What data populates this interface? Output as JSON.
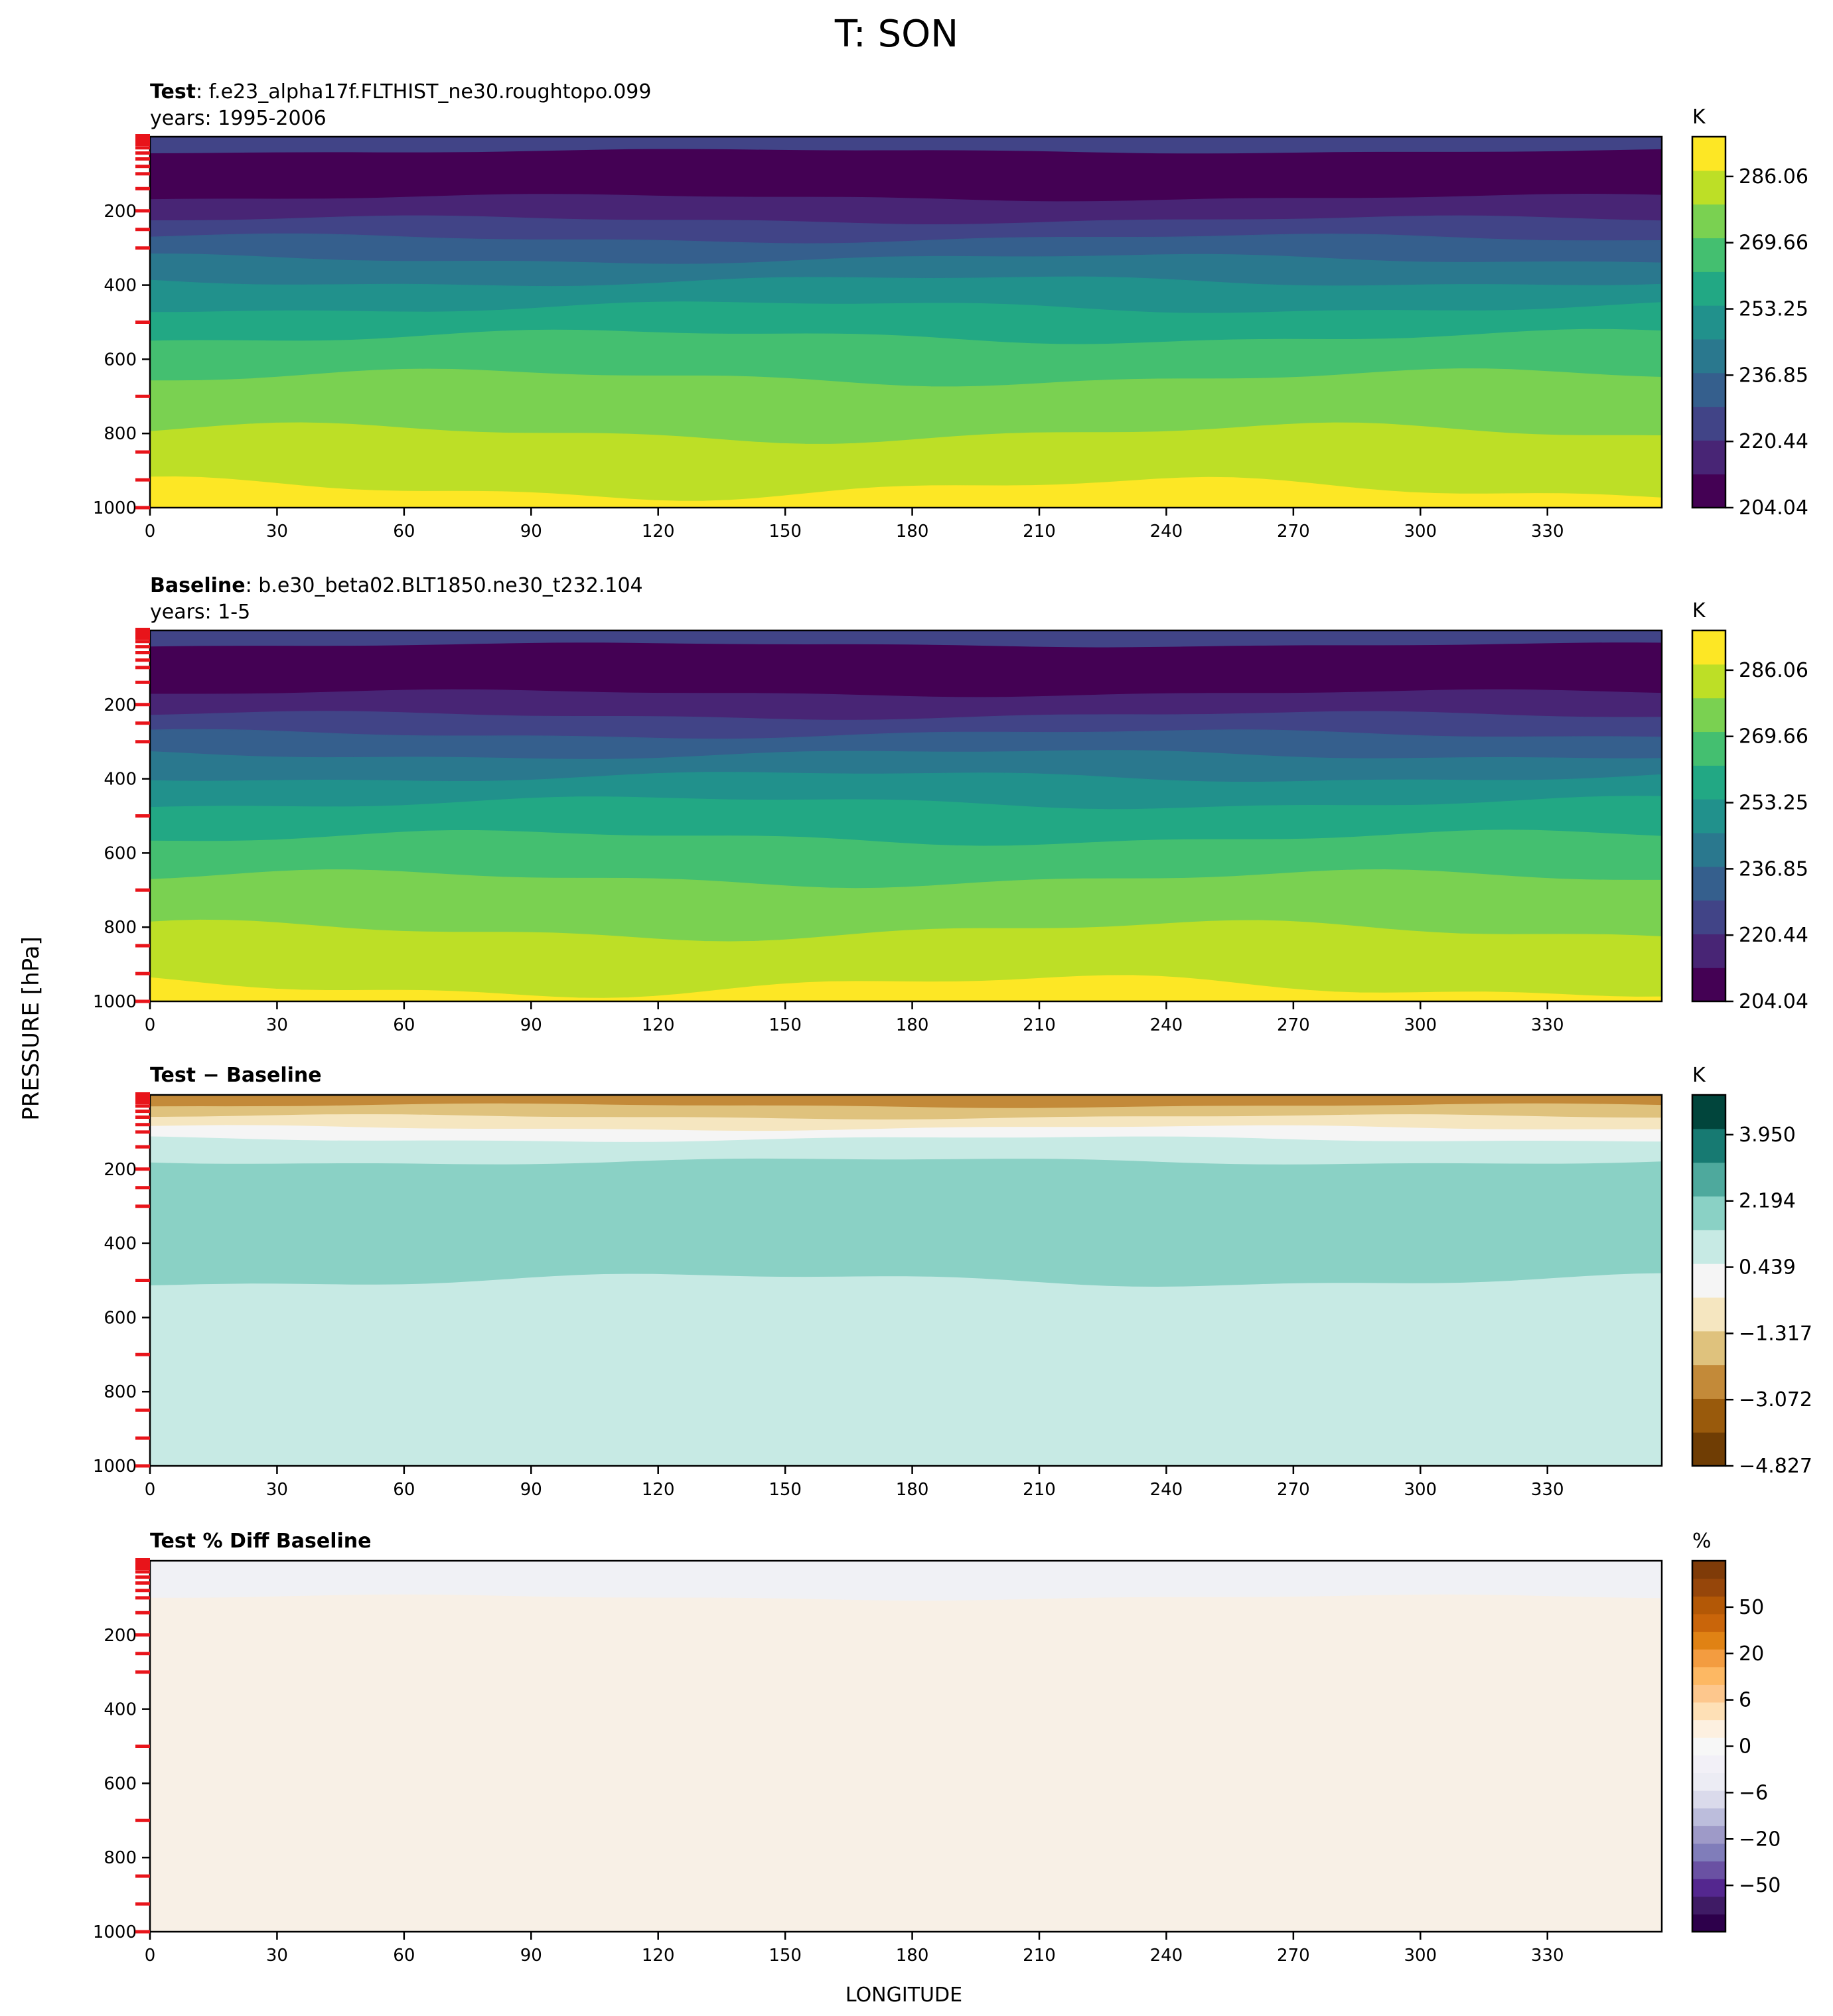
{
  "figure": {
    "title": "T: SON",
    "ylabel": "PRESSURE [hPa]",
    "xlabel": "LONGITUDE"
  },
  "chart_data": [
    {
      "type": "heatmap",
      "panel_id": "test",
      "label_bold": "Test",
      "label_rest": ": f.e23_alpha17f.FLTHIST_ne30.roughtopo.099",
      "years": "years: 1995-2006",
      "colorbar": {
        "unit": "K",
        "ticks": [
          "286.06",
          "269.66",
          "253.25",
          "236.85",
          "220.44",
          "204.04"
        ],
        "colors": [
          "#440154",
          "#482575",
          "#414487",
          "#355f8d",
          "#2a788e",
          "#21918c",
          "#22a884",
          "#44bf70",
          "#7ad151",
          "#bddf26",
          "#fde725"
        ]
      },
      "xlim": [
        0,
        357
      ],
      "x_ticks": [
        0,
        30,
        60,
        90,
        120,
        150,
        180,
        210,
        240,
        270,
        300,
        330
      ],
      "ylim": [
        1000,
        0
      ],
      "y_ticks": [
        200,
        400,
        600,
        800,
        1000
      ],
      "model_levels_hPa": [
        4,
        7,
        12,
        20,
        30,
        44,
        60,
        80,
        100,
        140,
        200,
        250,
        300,
        500,
        700,
        850,
        925,
        1000
      ],
      "bands": [
        {
          "level": 1,
          "top": 0,
          "bottom": 40,
          "color": "#414487"
        },
        {
          "level": 0,
          "top": 40,
          "bottom": 165,
          "color": "#440154"
        },
        {
          "level": 1,
          "top": 165,
          "bottom": 225,
          "color": "#482575"
        },
        {
          "level": 2,
          "top": 225,
          "bottom": 275,
          "color": "#414487"
        },
        {
          "level": 3,
          "top": 275,
          "bottom": 330,
          "color": "#355f8d"
        },
        {
          "level": 4,
          "top": 330,
          "bottom": 390,
          "color": "#2a788e"
        },
        {
          "level": 5,
          "top": 390,
          "bottom": 460,
          "color": "#21918c"
        },
        {
          "level": 6,
          "top": 460,
          "bottom": 540,
          "color": "#22a884"
        },
        {
          "level": 7,
          "top": 540,
          "bottom": 650,
          "color": "#44bf70"
        },
        {
          "level": 8,
          "top": 650,
          "bottom": 800,
          "color": "#7ad151"
        },
        {
          "level": 9,
          "top": 800,
          "bottom": 950,
          "color": "#bddf26"
        },
        {
          "level": 10,
          "top": 950,
          "bottom": 1000,
          "color": "#fde725"
        }
      ]
    },
    {
      "type": "heatmap",
      "panel_id": "baseline",
      "label_bold": "Baseline",
      "label_rest": ": b.e30_beta02.BLT1850.ne30_t232.104",
      "years": "years: 1-5",
      "colorbar": {
        "unit": "K",
        "ticks": [
          "286.06",
          "269.66",
          "253.25",
          "236.85",
          "220.44",
          "204.04"
        ],
        "colors": [
          "#440154",
          "#482575",
          "#414487",
          "#355f8d",
          "#2a788e",
          "#21918c",
          "#22a884",
          "#44bf70",
          "#7ad151",
          "#bddf26",
          "#fde725"
        ]
      },
      "xlim": [
        0,
        357
      ],
      "x_ticks": [
        0,
        30,
        60,
        90,
        120,
        150,
        180,
        210,
        240,
        270,
        300,
        330
      ],
      "ylim": [
        1000,
        0
      ],
      "y_ticks": [
        200,
        400,
        600,
        800,
        1000
      ],
      "model_levels_hPa": [
        4,
        7,
        12,
        20,
        30,
        44,
        60,
        80,
        100,
        140,
        200,
        250,
        300,
        500,
        700,
        850,
        925,
        1000
      ],
      "bands": [
        {
          "level": 1,
          "top": 0,
          "bottom": 40,
          "color": "#414487"
        },
        {
          "level": 0,
          "top": 40,
          "bottom": 170,
          "color": "#440154"
        },
        {
          "level": 1,
          "top": 170,
          "bottom": 230,
          "color": "#482575"
        },
        {
          "level": 2,
          "top": 230,
          "bottom": 280,
          "color": "#414487"
        },
        {
          "level": 3,
          "top": 280,
          "bottom": 335,
          "color": "#355f8d"
        },
        {
          "level": 4,
          "top": 335,
          "bottom": 395,
          "color": "#2a788e"
        },
        {
          "level": 5,
          "top": 395,
          "bottom": 465,
          "color": "#21918c"
        },
        {
          "level": 6,
          "top": 465,
          "bottom": 560,
          "color": "#22a884"
        },
        {
          "level": 7,
          "top": 560,
          "bottom": 670,
          "color": "#44bf70"
        },
        {
          "level": 8,
          "top": 670,
          "bottom": 810,
          "color": "#7ad151"
        },
        {
          "level": 9,
          "top": 810,
          "bottom": 960,
          "color": "#bddf26"
        },
        {
          "level": 10,
          "top": 960,
          "bottom": 1000,
          "color": "#fde725"
        }
      ]
    },
    {
      "type": "heatmap",
      "panel_id": "diff",
      "label_bold": "Test − Baseline",
      "label_rest": "",
      "years": "",
      "colorbar": {
        "unit": "K",
        "ticks": [
          "3.950",
          "2.194",
          "0.439",
          "−1.317",
          "−3.072",
          "−4.827"
        ],
        "colors": [
          "#6f3d04",
          "#995a0c",
          "#c38a39",
          "#dfc27d",
          "#f5e6c0",
          "#f5f5f5",
          "#c7eae4",
          "#8ad1c5",
          "#4ea99d",
          "#177a72",
          "#01453c"
        ]
      },
      "xlim": [
        0,
        357
      ],
      "x_ticks": [
        0,
        30,
        60,
        90,
        120,
        150,
        180,
        210,
        240,
        270,
        300,
        330
      ],
      "ylim": [
        1000,
        0
      ],
      "y_ticks": [
        200,
        400,
        600,
        800,
        1000
      ],
      "model_levels_hPa": [
        4,
        7,
        12,
        20,
        30,
        44,
        60,
        80,
        100,
        140,
        200,
        250,
        300,
        500,
        700,
        850,
        925,
        1000
      ],
      "bands": [
        {
          "level": 2,
          "top": 0,
          "bottom": 30,
          "color": "#c38a39"
        },
        {
          "level": 3,
          "top": 30,
          "bottom": 60,
          "color": "#dfc27d"
        },
        {
          "level": 4,
          "top": 60,
          "bottom": 90,
          "color": "#f5e6c0"
        },
        {
          "level": 5,
          "top": 90,
          "bottom": 120,
          "color": "#f5f5f5"
        },
        {
          "level": 6,
          "top": 120,
          "bottom": 180,
          "color": "#c7eae4"
        },
        {
          "level": 7,
          "top": 180,
          "bottom": 500,
          "color": "#8ad1c5"
        },
        {
          "level": 6,
          "top": 500,
          "bottom": 1000,
          "color": "#c7eae4"
        }
      ]
    },
    {
      "type": "heatmap",
      "panel_id": "pctdiff",
      "label_bold": "Test % Diff Baseline",
      "label_rest": "",
      "years": "",
      "colorbar": {
        "unit": "%",
        "ticks": [
          "50",
          "20",
          "6",
          "0",
          "−6",
          "−20",
          "−50"
        ],
        "colors": [
          "#2d004b",
          "#3f1b65",
          "#54278f",
          "#6a51a3",
          "#807dba",
          "#9e9ac8",
          "#bcbddc",
          "#dadaeb",
          "#ececf4",
          "#f2f0f7",
          "#f7f7f7",
          "#fdf0e0",
          "#fee0b6",
          "#fdc78d",
          "#fdb863",
          "#f39c40",
          "#e08214",
          "#c9650a",
          "#b35806",
          "#96460a",
          "#7f3b08"
        ]
      },
      "xlim": [
        0,
        357
      ],
      "x_ticks": [
        0,
        30,
        60,
        90,
        120,
        150,
        180,
        210,
        240,
        270,
        300,
        330
      ],
      "ylim": [
        1000,
        0
      ],
      "y_ticks": [
        200,
        400,
        600,
        800,
        1000
      ],
      "model_levels_hPa": [
        4,
        7,
        12,
        20,
        30,
        44,
        60,
        80,
        100,
        140,
        200,
        250,
        300,
        500,
        700,
        850,
        925,
        1000
      ],
      "bands": [
        {
          "level": 9,
          "top": 0,
          "bottom": 100,
          "color": "#f0f1f5"
        },
        {
          "level": 11,
          "top": 100,
          "bottom": 1000,
          "color": "#f8f0e6"
        }
      ]
    }
  ]
}
